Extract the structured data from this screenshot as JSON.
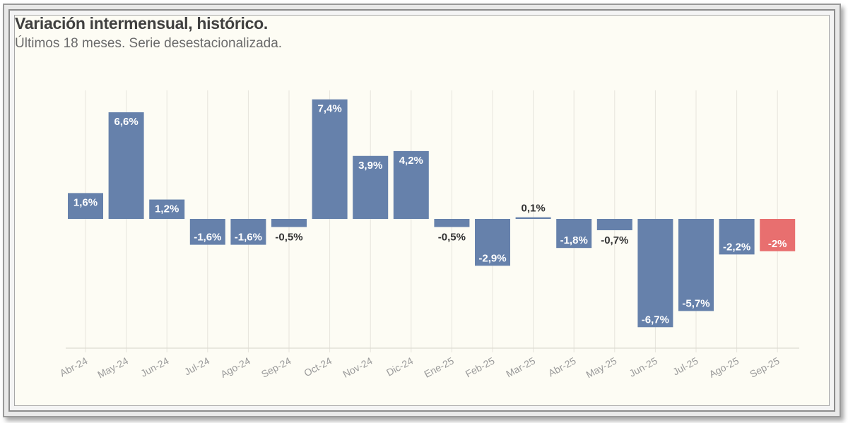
{
  "header": {
    "title": "Variación intermensual, histórico.",
    "subtitle": "Últimos 18 meses. Serie desestacionalizada."
  },
  "colors": {
    "bar": "#6681ab",
    "highlight": "#e86f6f",
    "grid": "#e6e4dc",
    "axis": "#dddbd2",
    "tick_label": "#9a9a9a",
    "label_dark": "#333333",
    "label_light": "#ffffff"
  },
  "chart_data": {
    "type": "bar",
    "title": "Variación intermensual, histórico.",
    "subtitle": "Últimos 18 meses. Serie desestacionalizada.",
    "xlabel": "",
    "ylabel": "",
    "categories": [
      "Abr-24",
      "May-24",
      "Jun-24",
      "Jul-24",
      "Ago-24",
      "Sep-24",
      "Oct-24",
      "Nov-24",
      "Dic-24",
      "Ene-25",
      "Feb-25",
      "Mar-25",
      "Abr-25",
      "May-25",
      "Jun-25",
      "Jul-25",
      "Ago-25",
      "Sep-25"
    ],
    "values": [
      1.6,
      6.6,
      1.2,
      -1.6,
      -1.6,
      -0.5,
      7.4,
      3.9,
      4.2,
      -0.5,
      -2.9,
      0.1,
      -1.8,
      -0.7,
      -6.7,
      -5.7,
      -2.2,
      -2.0
    ],
    "data_labels": [
      "1,6%",
      "6,6%",
      "1,2%",
      "-1,6%",
      "-1,6%",
      "-0,5%",
      "7,4%",
      "3,9%",
      "4,2%",
      "-0,5%",
      "-2,9%",
      "0,1%",
      "-1,8%",
      "-0,7%",
      "-6,7%",
      "-5,7%",
      "-2,2%",
      "-2%"
    ],
    "highlight_index": 17,
    "ylim": [
      -8.1,
      8.0
    ],
    "grid": "vertical",
    "legend": "none"
  }
}
